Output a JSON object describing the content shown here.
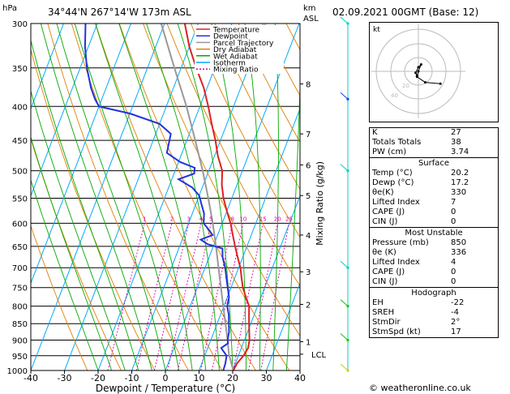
{
  "header": {
    "location": "34°44'N  267°14'W  173m  ASL",
    "datetime": "02.09.2021  00GMT  (Base: 12)",
    "hpa_label": "hPa",
    "km_label": "km",
    "asl_label": "ASL"
  },
  "chart_data": {
    "type": "line",
    "xlabel": "Dewpoint / Temperature (°C)",
    "ylabel_right": "Mixing Ratio (g/kg)",
    "xlim": [
      -40,
      40
    ],
    "pressure_range": [
      1000,
      300
    ],
    "x_ticks": [
      "-40",
      "-30",
      "-20",
      "-10",
      "0",
      "10",
      "20",
      "30",
      "40"
    ],
    "p_ticks": [
      "300",
      "350",
      "400",
      "450",
      "500",
      "550",
      "600",
      "650",
      "700",
      "750",
      "800",
      "850",
      "900",
      "950",
      "1000"
    ],
    "km_ticks": [
      {
        "km": "8",
        "p": 370
      },
      {
        "km": "7",
        "p": 440
      },
      {
        "km": "6",
        "p": 490
      },
      {
        "km": "5",
        "p": 545
      },
      {
        "km": "4",
        "p": 625
      },
      {
        "km": "3",
        "p": 710
      },
      {
        "km": "2",
        "p": 795
      },
      {
        "km": "1",
        "p": 905
      }
    ],
    "lcl_label": "LCL",
    "lcl_p": 945,
    "mixing_ratio_labels": [
      "1",
      "2",
      "3",
      "4",
      "5",
      "8",
      "10",
      "15",
      "20",
      "25"
    ],
    "mixing_ratio_values": [
      1,
      2,
      3,
      4,
      5,
      8,
      10,
      15,
      20,
      25
    ],
    "legend": [
      {
        "name": "Temperature",
        "color": "#dd2222"
      },
      {
        "name": "Dewpoint",
        "color": "#2233dd"
      },
      {
        "name": "Parcel Trajectory",
        "color": "#999999"
      },
      {
        "name": "Dry Adiabat",
        "color": "#e08000"
      },
      {
        "name": "Wet Adiabat",
        "color": "#00aa00"
      },
      {
        "name": "Isotherm",
        "color": "#00aaff"
      },
      {
        "name": "Mixing Ratio",
        "color": "#dd00aa"
      }
    ],
    "temperature": [
      {
        "p": 1000,
        "t": 20.2
      },
      {
        "p": 975,
        "t": 20.5
      },
      {
        "p": 950,
        "t": 21.5
      },
      {
        "p": 925,
        "t": 22.0
      },
      {
        "p": 900,
        "t": 21.5
      },
      {
        "p": 875,
        "t": 20.5
      },
      {
        "p": 850,
        "t": 19.5
      },
      {
        "p": 825,
        "t": 18.5
      },
      {
        "p": 800,
        "t": 17.5
      },
      {
        "p": 775,
        "t": 15.5
      },
      {
        "p": 750,
        "t": 13.5
      },
      {
        "p": 725,
        "t": 12.0
      },
      {
        "p": 700,
        "t": 10.5
      },
      {
        "p": 675,
        "t": 8.5
      },
      {
        "p": 650,
        "t": 6.5
      },
      {
        "p": 625,
        "t": 4.5
      },
      {
        "p": 600,
        "t": 2.5
      },
      {
        "p": 575,
        "t": 0.0
      },
      {
        "p": 550,
        "t": -2.5
      },
      {
        "p": 525,
        "t": -4.5
      },
      {
        "p": 500,
        "t": -6.0
      },
      {
        "p": 475,
        "t": -9.0
      },
      {
        "p": 450,
        "t": -11.5
      },
      {
        "p": 425,
        "t": -14.5
      },
      {
        "p": 400,
        "t": -17.5
      },
      {
        "p": 375,
        "t": -21.0
      },
      {
        "p": 350,
        "t": -25.5
      },
      {
        "p": 325,
        "t": -30.0
      },
      {
        "p": 300,
        "t": -34.0
      }
    ],
    "dewpoint": [
      {
        "p": 1000,
        "t": 17.2
      },
      {
        "p": 975,
        "t": 17.0
      },
      {
        "p": 950,
        "t": 16.5
      },
      {
        "p": 925,
        "t": 14.0
      },
      {
        "p": 910,
        "t": 15.5
      },
      {
        "p": 900,
        "t": 15.0
      },
      {
        "p": 875,
        "t": 14.5
      },
      {
        "p": 850,
        "t": 13.5
      },
      {
        "p": 825,
        "t": 12.5
      },
      {
        "p": 800,
        "t": 11.0
      },
      {
        "p": 775,
        "t": 10.5
      },
      {
        "p": 750,
        "t": 9.0
      },
      {
        "p": 725,
        "t": 7.5
      },
      {
        "p": 700,
        "t": 6.0
      },
      {
        "p": 675,
        "t": 4.0
      },
      {
        "p": 655,
        "t": 3.0
      },
      {
        "p": 645,
        "t": -2.0
      },
      {
        "p": 635,
        "t": -4.5
      },
      {
        "p": 625,
        "t": -1.5
      },
      {
        "p": 615,
        "t": -3.0
      },
      {
        "p": 600,
        "t": -5.5
      },
      {
        "p": 580,
        "t": -6.5
      },
      {
        "p": 560,
        "t": -8.5
      },
      {
        "p": 545,
        "t": -10.0
      },
      {
        "p": 530,
        "t": -13.0
      },
      {
        "p": 515,
        "t": -18.0
      },
      {
        "p": 505,
        "t": -14.0
      },
      {
        "p": 495,
        "t": -14.5
      },
      {
        "p": 485,
        "t": -19.5
      },
      {
        "p": 470,
        "t": -24.5
      },
      {
        "p": 455,
        "t": -25.0
      },
      {
        "p": 440,
        "t": -25.5
      },
      {
        "p": 425,
        "t": -30.0
      },
      {
        "p": 410,
        "t": -40.0
      },
      {
        "p": 400,
        "t": -50.0
      },
      {
        "p": 390,
        "t": -52.0
      },
      {
        "p": 375,
        "t": -54.5
      },
      {
        "p": 350,
        "t": -58.0
      },
      {
        "p": 325,
        "t": -61.0
      },
      {
        "p": 300,
        "t": -63.5
      }
    ],
    "parcel": [
      {
        "p": 1000,
        "t": 20.2
      },
      {
        "p": 945,
        "t": 17.0
      },
      {
        "p": 900,
        "t": 15.0
      },
      {
        "p": 850,
        "t": 12.5
      },
      {
        "p": 800,
        "t": 9.8
      },
      {
        "p": 750,
        "t": 7.0
      },
      {
        "p": 700,
        "t": 4.0
      },
      {
        "p": 650,
        "t": 0.8
      },
      {
        "p": 600,
        "t": -2.8
      },
      {
        "p": 550,
        "t": -7.0
      },
      {
        "p": 500,
        "t": -11.8
      },
      {
        "p": 450,
        "t": -17.5
      },
      {
        "p": 400,
        "t": -24.0
      },
      {
        "p": 350,
        "t": -32.0
      },
      {
        "p": 300,
        "t": -41.0
      }
    ],
    "hodograph": {
      "label": "kt",
      "rings": [
        "20",
        "40"
      ],
      "points": [
        {
          "u": -1,
          "v": -3
        },
        {
          "u": -2,
          "v": -1
        },
        {
          "u": 0,
          "v": 3
        },
        {
          "u": 2,
          "v": 5
        },
        {
          "u": 0,
          "v": 0
        },
        {
          "u": -1,
          "v": -4
        },
        {
          "u": 5,
          "v": -8
        },
        {
          "u": 16,
          "v": -9
        }
      ]
    }
  },
  "indices": [
    {
      "label": "K",
      "value": "27"
    },
    {
      "label": "Totals Totals",
      "value": "38"
    },
    {
      "label": "PW (cm)",
      "value": "3.74"
    }
  ],
  "surface": {
    "title": "Surface",
    "rows": [
      {
        "label": "Temp (°C)",
        "value": "20.2"
      },
      {
        "label": "Dewp (°C)",
        "value": "17.2"
      },
      {
        "label": "θe(K)",
        "value": "330"
      },
      {
        "label": "Lifted Index",
        "value": "7"
      },
      {
        "label": "CAPE (J)",
        "value": "0"
      },
      {
        "label": "CIN (J)",
        "value": "0"
      }
    ]
  },
  "most_unstable": {
    "title": "Most Unstable",
    "rows": [
      {
        "label": "Pressure (mb)",
        "value": "850"
      },
      {
        "label": "θe (K)",
        "value": "336"
      },
      {
        "label": "Lifted Index",
        "value": "4"
      },
      {
        "label": "CAPE (J)",
        "value": "0"
      },
      {
        "label": "CIN (J)",
        "value": "0"
      }
    ]
  },
  "hodograph_table": {
    "title": "Hodograph",
    "rows": [
      {
        "label": "EH",
        "value": "-22"
      },
      {
        "label": "SREH",
        "value": "-4"
      },
      {
        "label": "StmDir",
        "value": "2°"
      },
      {
        "label": "StmSpd (kt)",
        "value": "17"
      }
    ]
  },
  "footer": {
    "text": "© weatheronline.co.uk"
  },
  "colors": {
    "temperature": "#dd2222",
    "dewpoint": "#2233dd",
    "parcel": "#999999",
    "dry": "#e08000",
    "wet": "#00aa00",
    "isotherm": "#00aaff",
    "mixing": "#dd00aa"
  }
}
